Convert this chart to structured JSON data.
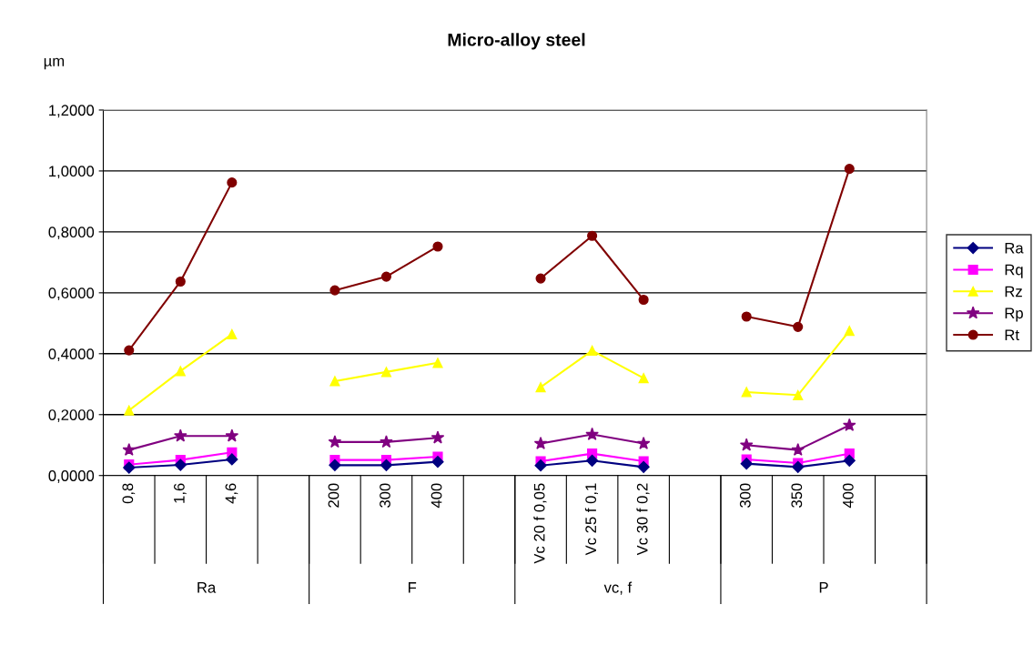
{
  "chart_data": {
    "type": "line",
    "title": "Micro-alloy steel",
    "ylabel": "µm",
    "categories": [
      "0,8",
      "1,6",
      "4,6",
      null,
      "200",
      "300",
      "400",
      null,
      "Vc 20 f 0,05",
      "Vc 25 f 0,1",
      "Vc 30 f 0,2",
      null,
      "300",
      "350",
      "400",
      null
    ],
    "series": [
      {
        "name": "Ra",
        "color": "#000080",
        "marker": "diamond",
        "values": [
          0.026,
          0.035,
          0.053,
          null,
          0.034,
          0.034,
          0.045,
          null,
          0.033,
          0.049,
          0.028,
          null,
          0.039,
          0.028,
          0.049,
          null
        ]
      },
      {
        "name": "Rq",
        "color": "#ff00ff",
        "marker": "square",
        "values": [
          0.036,
          0.051,
          0.076,
          null,
          0.051,
          0.051,
          0.062,
          null,
          0.047,
          0.072,
          0.047,
          null,
          0.053,
          0.041,
          0.072,
          null
        ]
      },
      {
        "name": "Rz",
        "color": "#ffff00",
        "marker": "triangle",
        "values": [
          0.214,
          0.343,
          0.464,
          null,
          0.31,
          0.34,
          0.37,
          null,
          0.29,
          0.41,
          0.32,
          null,
          0.274,
          0.264,
          0.475,
          null
        ]
      },
      {
        "name": "Rp",
        "color": "#800080",
        "marker": "star",
        "values": [
          0.084,
          0.13,
          0.13,
          null,
          0.11,
          0.11,
          0.124,
          null,
          0.105,
          0.135,
          0.105,
          null,
          0.1,
          0.084,
          0.165,
          null
        ]
      },
      {
        "name": "Rt",
        "color": "#800000",
        "marker": "circle",
        "values": [
          0.411,
          0.637,
          0.962,
          null,
          0.608,
          0.653,
          0.752,
          null,
          0.647,
          0.787,
          0.577,
          null,
          0.522,
          0.488,
          1.007,
          null
        ]
      }
    ],
    "ylim": [
      0,
      1.2
    ],
    "yticks": [
      {
        "value": 0,
        "label": "0,0000"
      },
      {
        "value": 0.2,
        "label": "0,2000"
      },
      {
        "value": 0.4,
        "label": "0,4000"
      },
      {
        "value": 0.6,
        "label": "0,6000"
      },
      {
        "value": 0.8,
        "label": "0,8000"
      },
      {
        "value": 1.0,
        "label": "1,0000"
      },
      {
        "value": 1.2,
        "label": "1,2000"
      }
    ],
    "grid": "y",
    "legend": "right",
    "line_style": "solid",
    "annotations": [
      "Ra",
      "F",
      "vc, f",
      "P"
    ]
  }
}
